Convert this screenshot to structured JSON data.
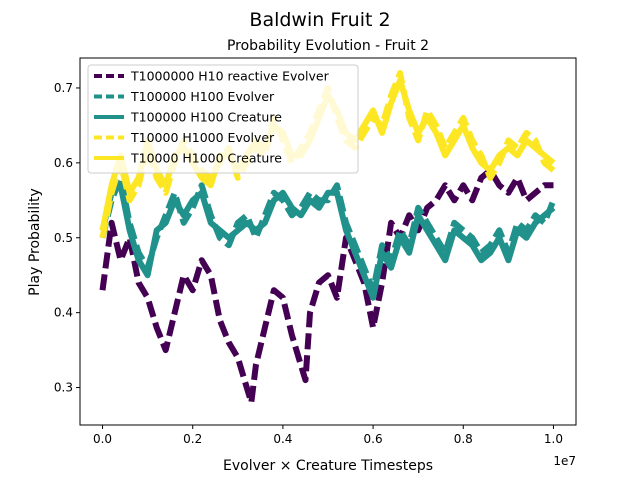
{
  "figure": {
    "suptitle": "Baldwin Fruit 2"
  },
  "chart_data": {
    "type": "line",
    "title": "Probability Evolution - Fruit 2",
    "xlabel": "Evolver × Creature Timesteps",
    "ylabel": "Play Probability",
    "x_offset_text": "1e7",
    "xlim": [
      -0.05,
      1.05
    ],
    "ylim": [
      0.25,
      0.74
    ],
    "xticks": [
      0.0,
      0.2,
      0.4,
      0.6,
      0.8,
      1.0
    ],
    "xtick_labels": [
      "0.0",
      "0.2",
      "0.4",
      "0.6",
      "0.8",
      "1.0"
    ],
    "yticks": [
      0.3,
      0.4,
      0.5,
      0.6,
      0.7
    ],
    "ytick_labels": [
      "0.3",
      "0.4",
      "0.5",
      "0.6",
      "0.7"
    ],
    "grid": false,
    "legend_position": "top-left",
    "series": [
      {
        "name": "T1000000 H10 reactive Evolver",
        "color": "#440154",
        "style": "dashed",
        "x": [
          0.0,
          0.02,
          0.04,
          0.06,
          0.08,
          0.1,
          0.12,
          0.14,
          0.16,
          0.18,
          0.2,
          0.22,
          0.24,
          0.26,
          0.28,
          0.3,
          0.32,
          0.33,
          0.34,
          0.36,
          0.38,
          0.4,
          0.42,
          0.44,
          0.45,
          0.46,
          0.48,
          0.5,
          0.52,
          0.54,
          0.56,
          0.58,
          0.6,
          0.62,
          0.64,
          0.66,
          0.68,
          0.7,
          0.72,
          0.74,
          0.76,
          0.78,
          0.8,
          0.82,
          0.84,
          0.86,
          0.88,
          0.9,
          0.92,
          0.94,
          0.96,
          0.98,
          1.0
        ],
        "y": [
          0.43,
          0.52,
          0.47,
          0.5,
          0.44,
          0.42,
          0.38,
          0.35,
          0.4,
          0.45,
          0.43,
          0.47,
          0.45,
          0.39,
          0.36,
          0.34,
          0.3,
          0.28,
          0.33,
          0.38,
          0.43,
          0.42,
          0.37,
          0.33,
          0.31,
          0.4,
          0.44,
          0.45,
          0.42,
          0.5,
          0.47,
          0.44,
          0.38,
          0.44,
          0.52,
          0.5,
          0.53,
          0.51,
          0.54,
          0.55,
          0.57,
          0.55,
          0.57,
          0.55,
          0.58,
          0.59,
          0.57,
          0.56,
          0.58,
          0.55,
          0.56,
          0.57,
          0.57
        ]
      },
      {
        "name": "T100000 H100 Evolver",
        "color": "#21918c",
        "style": "dashed",
        "x": [
          0.0,
          0.02,
          0.04,
          0.06,
          0.08,
          0.1,
          0.12,
          0.14,
          0.16,
          0.18,
          0.2,
          0.22,
          0.24,
          0.26,
          0.28,
          0.3,
          0.32,
          0.34,
          0.36,
          0.38,
          0.4,
          0.42,
          0.44,
          0.46,
          0.48,
          0.5,
          0.52,
          0.54,
          0.56,
          0.58,
          0.6,
          0.62,
          0.64,
          0.66,
          0.68,
          0.7,
          0.72,
          0.74,
          0.76,
          0.78,
          0.8,
          0.82,
          0.84,
          0.86,
          0.88,
          0.9,
          0.92,
          0.94,
          0.96,
          0.98,
          1.0
        ],
        "y": [
          0.5,
          0.55,
          0.58,
          0.52,
          0.48,
          0.46,
          0.5,
          0.53,
          0.56,
          0.52,
          0.54,
          0.57,
          0.53,
          0.5,
          0.49,
          0.52,
          0.53,
          0.5,
          0.53,
          0.56,
          0.55,
          0.53,
          0.54,
          0.56,
          0.55,
          0.55,
          0.57,
          0.52,
          0.49,
          0.46,
          0.43,
          0.49,
          0.47,
          0.51,
          0.49,
          0.54,
          0.52,
          0.5,
          0.48,
          0.52,
          0.51,
          0.5,
          0.48,
          0.49,
          0.51,
          0.48,
          0.52,
          0.51,
          0.53,
          0.52,
          0.55
        ]
      },
      {
        "name": "T100000 H100 Creature",
        "color": "#21918c",
        "style": "solid",
        "x": [
          0.0,
          0.02,
          0.04,
          0.06,
          0.08,
          0.1,
          0.12,
          0.14,
          0.16,
          0.18,
          0.2,
          0.22,
          0.24,
          0.26,
          0.28,
          0.3,
          0.32,
          0.34,
          0.36,
          0.38,
          0.4,
          0.42,
          0.44,
          0.46,
          0.48,
          0.5,
          0.52,
          0.54,
          0.56,
          0.58,
          0.6,
          0.62,
          0.64,
          0.66,
          0.68,
          0.7,
          0.72,
          0.74,
          0.76,
          0.78,
          0.8,
          0.82,
          0.84,
          0.86,
          0.88,
          0.9,
          0.92,
          0.94,
          0.96,
          0.98,
          1.0
        ],
        "y": [
          0.51,
          0.56,
          0.57,
          0.51,
          0.47,
          0.45,
          0.51,
          0.52,
          0.55,
          0.53,
          0.55,
          0.56,
          0.52,
          0.51,
          0.5,
          0.51,
          0.52,
          0.51,
          0.52,
          0.55,
          0.56,
          0.54,
          0.53,
          0.55,
          0.54,
          0.56,
          0.56,
          0.51,
          0.48,
          0.45,
          0.42,
          0.48,
          0.46,
          0.5,
          0.48,
          0.53,
          0.51,
          0.49,
          0.47,
          0.51,
          0.5,
          0.49,
          0.47,
          0.48,
          0.5,
          0.47,
          0.51,
          0.5,
          0.52,
          0.53,
          0.54
        ]
      },
      {
        "name": "T10000 H1000 Evolver",
        "color": "#fde725",
        "style": "dashed",
        "x": [
          0.0,
          0.02,
          0.04,
          0.06,
          0.08,
          0.1,
          0.12,
          0.14,
          0.16,
          0.18,
          0.2,
          0.22,
          0.24,
          0.26,
          0.28,
          0.3,
          0.32,
          0.34,
          0.36,
          0.38,
          0.4,
          0.42,
          0.44,
          0.46,
          0.48,
          0.5,
          0.52,
          0.54,
          0.56,
          0.58,
          0.6,
          0.62,
          0.64,
          0.66,
          0.68,
          0.7,
          0.72,
          0.74,
          0.76,
          0.78,
          0.8,
          0.82,
          0.84,
          0.86,
          0.88,
          0.9,
          0.92,
          0.94,
          0.96,
          0.98,
          1.0
        ],
        "y": [
          0.5,
          0.56,
          0.6,
          0.55,
          0.57,
          0.62,
          0.58,
          0.56,
          0.6,
          0.63,
          0.61,
          0.59,
          0.58,
          0.6,
          0.62,
          0.58,
          0.6,
          0.62,
          0.61,
          0.66,
          0.63,
          0.6,
          0.62,
          0.64,
          0.67,
          0.7,
          0.66,
          0.63,
          0.62,
          0.64,
          0.66,
          0.65,
          0.69,
          0.72,
          0.66,
          0.63,
          0.67,
          0.65,
          0.62,
          0.64,
          0.66,
          0.63,
          0.61,
          0.58,
          0.6,
          0.63,
          0.62,
          0.64,
          0.63,
          0.6,
          0.59
        ]
      },
      {
        "name": "T10000 H1000 Creature",
        "color": "#fde725",
        "style": "solid",
        "x": [
          0.0,
          0.02,
          0.04,
          0.06,
          0.08,
          0.1,
          0.12,
          0.14,
          0.16,
          0.18,
          0.2,
          0.22,
          0.24,
          0.26,
          0.28,
          0.3,
          0.32,
          0.34,
          0.36,
          0.38,
          0.4,
          0.42,
          0.44,
          0.46,
          0.48,
          0.5,
          0.52,
          0.54,
          0.56,
          0.58,
          0.6,
          0.62,
          0.64,
          0.66,
          0.68,
          0.7,
          0.72,
          0.74,
          0.76,
          0.78,
          0.8,
          0.82,
          0.84,
          0.86,
          0.88,
          0.9,
          0.92,
          0.94,
          0.96,
          0.98,
          1.0
        ],
        "y": [
          0.51,
          0.57,
          0.61,
          0.56,
          0.58,
          0.63,
          0.59,
          0.57,
          0.61,
          0.62,
          0.6,
          0.58,
          0.57,
          0.61,
          0.61,
          0.59,
          0.61,
          0.63,
          0.62,
          0.65,
          0.64,
          0.61,
          0.61,
          0.63,
          0.66,
          0.69,
          0.67,
          0.64,
          0.63,
          0.65,
          0.67,
          0.64,
          0.68,
          0.71,
          0.67,
          0.64,
          0.66,
          0.64,
          0.61,
          0.63,
          0.65,
          0.62,
          0.6,
          0.59,
          0.61,
          0.62,
          0.61,
          0.63,
          0.62,
          0.61,
          0.6
        ]
      }
    ]
  }
}
